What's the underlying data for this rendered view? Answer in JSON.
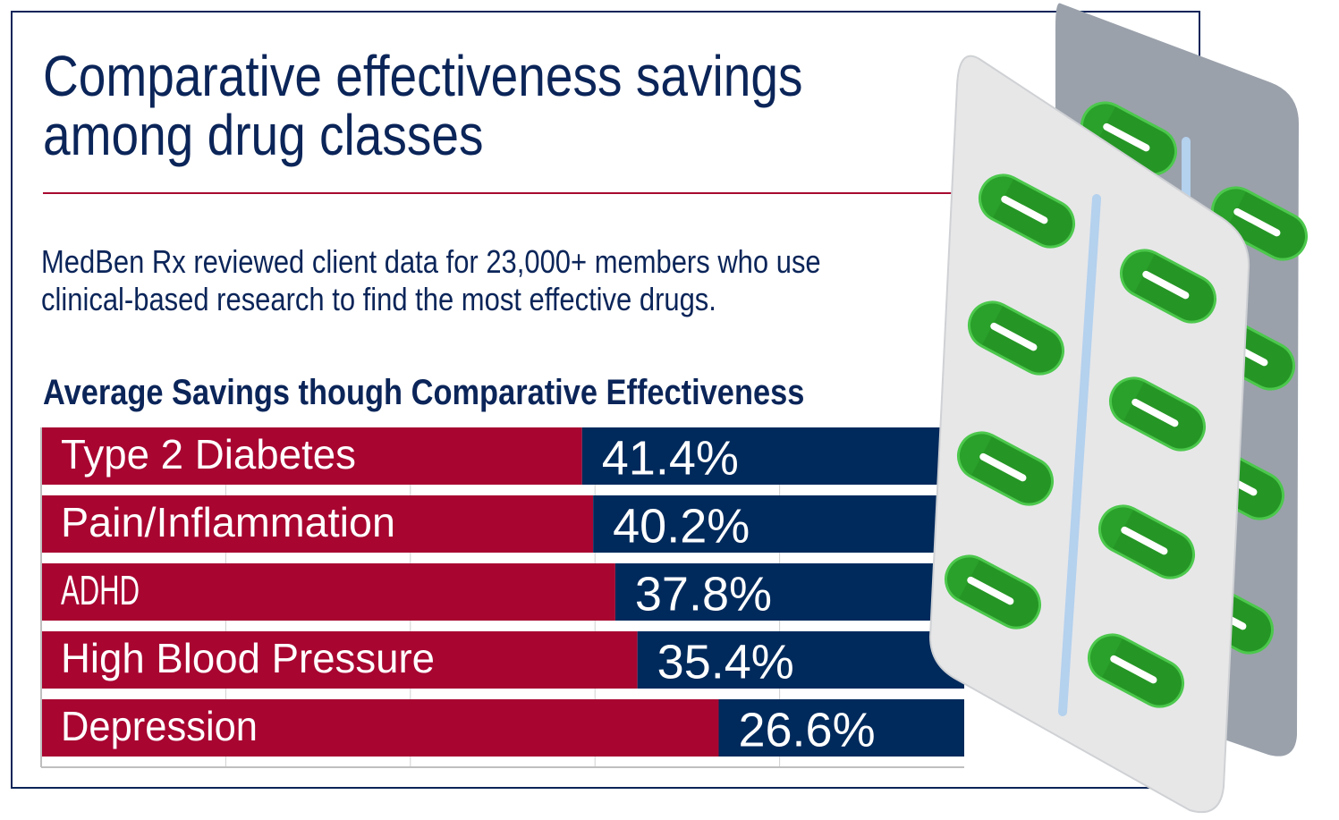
{
  "header": {
    "title_line1": "Comparative effectiveness savings",
    "title_line2": "among drug classes",
    "subtitle_line1": "MedBen Rx reviewed client data for 23,000+ members who use",
    "subtitle_line2": "clinical-based research to find the most effective drugs."
  },
  "chart_data": {
    "type": "bar",
    "orientation": "horizontal",
    "title": "Average Savings though Comparative Effectiveness",
    "categories": [
      "Type 2 Diabetes",
      "Pain/Inflammation",
      "ADHD",
      "High Blood Pressure",
      "Depression"
    ],
    "values": [
      41.4,
      40.2,
      37.8,
      35.4,
      26.6
    ],
    "value_labels": [
      "41.4%",
      "40.2%",
      "37.8%",
      "35.4%",
      "26.6%"
    ],
    "xlim": [
      0,
      100
    ],
    "grid": true,
    "colors": {
      "savings": "#002a5c",
      "remainder": "#a80531",
      "text": "#0b2559",
      "rule": "#a80a31"
    }
  },
  "illustration": {
    "icon": "pill-blister-pack-icon"
  }
}
